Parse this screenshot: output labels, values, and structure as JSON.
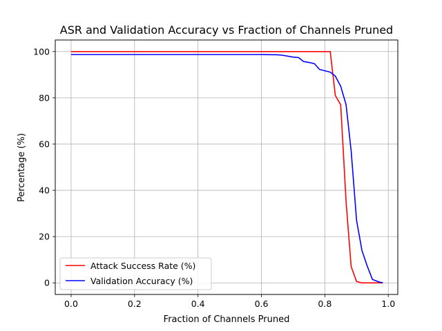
{
  "chart_data": {
    "type": "line",
    "title": "ASR and Validation Accuracy vs Fraction of Channels Pruned",
    "xlabel": "Fraction of Channels Pruned",
    "ylabel": "Percentage (%)",
    "xlim": [
      -0.05,
      1.03
    ],
    "ylim": [
      -5,
      105
    ],
    "xticks": [
      0.0,
      0.2,
      0.4,
      0.6,
      0.8,
      1.0
    ],
    "xtick_labels": [
      "0.0",
      "0.2",
      "0.4",
      "0.6",
      "0.8",
      "1.0"
    ],
    "yticks": [
      0,
      20,
      40,
      60,
      80,
      100
    ],
    "ytick_labels": [
      "0",
      "20",
      "40",
      "60",
      "80",
      "100"
    ],
    "grid": true,
    "legend_position": "lower-left",
    "series": [
      {
        "name": "Attack Success Rate (%)",
        "color": "#ff0000",
        "points": [
          [
            0.0,
            100
          ],
          [
            0.2,
            100
          ],
          [
            0.4,
            100
          ],
          [
            0.6,
            100
          ],
          [
            0.7,
            100
          ],
          [
            0.817,
            100
          ],
          [
            0.833,
            81
          ],
          [
            0.85,
            77
          ],
          [
            0.867,
            35
          ],
          [
            0.883,
            7
          ],
          [
            0.9,
            0.6
          ],
          [
            0.917,
            0
          ],
          [
            0.95,
            0
          ],
          [
            0.983,
            0
          ]
        ]
      },
      {
        "name": "Validation Accuracy (%)",
        "color": "#0000ff",
        "points": [
          [
            0.0,
            98.7
          ],
          [
            0.2,
            98.7
          ],
          [
            0.4,
            98.7
          ],
          [
            0.6,
            98.7
          ],
          [
            0.65,
            98.6
          ],
          [
            0.667,
            98.4
          ],
          [
            0.7,
            97.6
          ],
          [
            0.717,
            97.4
          ],
          [
            0.733,
            95.7
          ],
          [
            0.75,
            95.3
          ],
          [
            0.767,
            94.8
          ],
          [
            0.783,
            92.3
          ],
          [
            0.8,
            91.7
          ],
          [
            0.817,
            91.1
          ],
          [
            0.833,
            89.4
          ],
          [
            0.85,
            85.0
          ],
          [
            0.867,
            77.0
          ],
          [
            0.883,
            57.0
          ],
          [
            0.9,
            27.0
          ],
          [
            0.917,
            14.0
          ],
          [
            0.933,
            7.5
          ],
          [
            0.95,
            1.5
          ],
          [
            0.967,
            0.6
          ],
          [
            0.983,
            0.0
          ]
        ]
      }
    ]
  }
}
